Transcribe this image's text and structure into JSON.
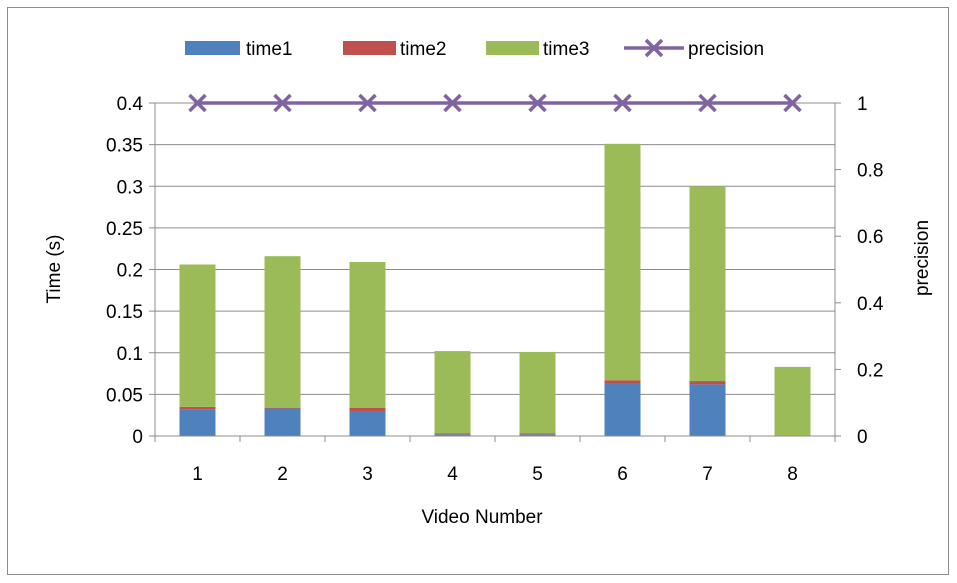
{
  "chart_data": {
    "type": "bar",
    "stacked": true,
    "categories": [
      "1",
      "2",
      "3",
      "4",
      "5",
      "6",
      "7",
      "8"
    ],
    "series": [
      {
        "name": "time1",
        "type": "bar",
        "axis": "left",
        "color": "#4f81bd",
        "values": [
          0.032,
          0.033,
          0.03,
          0.002,
          0.002,
          0.063,
          0.062,
          0.0
        ]
      },
      {
        "name": "time2",
        "type": "bar",
        "axis": "left",
        "color": "#c0504d",
        "values": [
          0.003,
          0.001,
          0.004,
          0.001,
          0.001,
          0.004,
          0.004,
          0.001
        ]
      },
      {
        "name": "time3",
        "type": "bar",
        "axis": "left",
        "color": "#9bbb59",
        "values": [
          0.171,
          0.182,
          0.175,
          0.099,
          0.098,
          0.284,
          0.234,
          0.082
        ]
      },
      {
        "name": "precision",
        "type": "line",
        "axis": "right",
        "color": "#8064a2",
        "marker": "x",
        "values": [
          1,
          1,
          1,
          1,
          1,
          1,
          1,
          1
        ]
      }
    ],
    "xlabel": "Video  Number",
    "ylabel": "Time (s)",
    "y2label": "precision",
    "ylim": [
      0,
      0.4
    ],
    "y2lim": [
      0,
      1
    ],
    "yticks": [
      "0",
      "0.05",
      "0.1",
      "0.15",
      "0.2",
      "0.25",
      "0.3",
      "0.35",
      "0.4"
    ],
    "y2ticks": [
      "0",
      "0.2",
      "0.4",
      "0.6",
      "0.8",
      "1"
    ],
    "grid": true,
    "legend": "top"
  }
}
